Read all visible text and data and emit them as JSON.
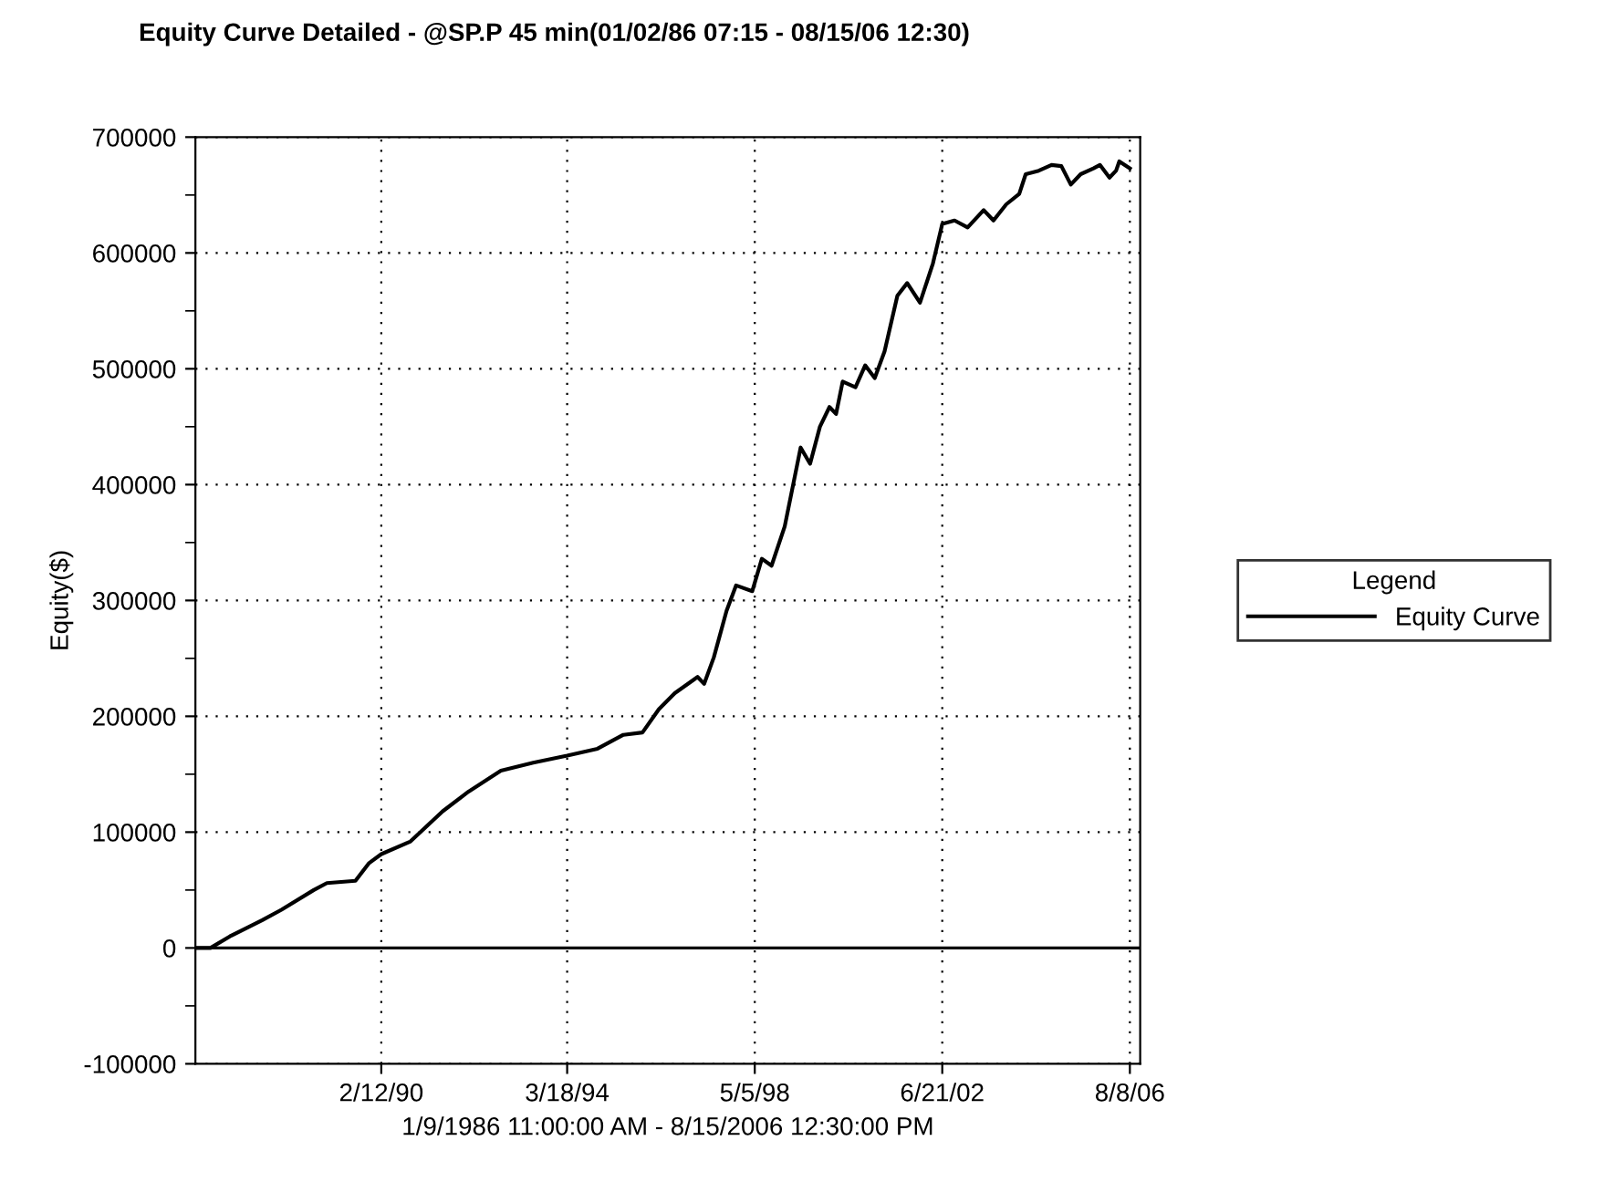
{
  "chart_data": {
    "type": "line",
    "title": "Equity Curve Detailed - @SP.P 45 min(01/02/86 07:15 - 08/15/06 12:30)",
    "xlabel": "1/9/1986 11:00:00 AM - 8/15/2006 12:30:00 PM",
    "ylabel": "Equity($)",
    "legend_title": "Legend",
    "legend": "right",
    "x": [
      "1986-01-09",
      "1986-05-10",
      "1986-10-13",
      "1987-07-01",
      "1987-12-02",
      "1988-08-18",
      "1988-12-01",
      "1989-07-19",
      "1989-11-03",
      "1990-02-12",
      "1990-10-05",
      "1991-06-21",
      "1992-01-15",
      "1992-10-01",
      "1993-06-18",
      "1994-03-18",
      "1994-11-17",
      "1995-06-13",
      "1995-11-14",
      "1996-03-24",
      "1996-07-31",
      "1997-01-30",
      "1997-03-24",
      "1997-06-10",
      "1997-09-20",
      "1997-12-06",
      "1998-04-15",
      "1998-07-01",
      "1998-09-17",
      "1999-01-01",
      "1999-05-09",
      "1999-07-24",
      "1999-10-11",
      "1999-12-27",
      "2000-02-18",
      "2000-04-11",
      "2000-07-23",
      "2000-10-09",
      "2000-12-25",
      "2001-03-14",
      "2001-06-25",
      "2001-09-12",
      "2001-12-24",
      "2002-04-07",
      "2002-06-21",
      "2002-09-28",
      "2003-01-11",
      "2003-05-20",
      "2003-08-07",
      "2003-11-18",
      "2004-03-01",
      "2004-04-22",
      "2004-08-05",
      "2004-11-16",
      "2005-02-03",
      "2005-04-20",
      "2005-07-08",
      "2005-10-19",
      "2005-12-10",
      "2006-02-25",
      "2006-04-19",
      "2006-05-15",
      "2006-08-08"
    ],
    "series": [
      {
        "name": "Equity Curve",
        "color": "#000000",
        "values": [
          0,
          0,
          10000,
          24000,
          33000,
          50000,
          56000,
          58000,
          73000,
          81000,
          92000,
          118000,
          135000,
          153000,
          160000,
          166000,
          172000,
          184000,
          186000,
          206000,
          220000,
          234000,
          228000,
          251000,
          291000,
          313000,
          308000,
          336000,
          330000,
          364000,
          432000,
          418000,
          450000,
          467000,
          461000,
          489000,
          484000,
          503000,
          492000,
          515000,
          563000,
          574000,
          557000,
          591000,
          625000,
          628000,
          622000,
          637000,
          628000,
          642000,
          651000,
          668000,
          671000,
          676000,
          675000,
          659000,
          668000,
          673000,
          676000,
          665000,
          671000,
          679000,
          673000
        ]
      }
    ],
    "xlim": [
      "1986-01-09",
      "2006-10-30"
    ],
    "xticks": [
      {
        "value": "1990-02-12",
        "label": "2/12/90"
      },
      {
        "value": "1994-03-18",
        "label": "3/18/94"
      },
      {
        "value": "1998-05-05",
        "label": "5/5/98"
      },
      {
        "value": "2002-06-21",
        "label": "6/21/02"
      },
      {
        "value": "2006-08-08",
        "label": "8/8/06"
      }
    ],
    "ylim": [
      -100000,
      700000
    ],
    "yticks": [
      -100000,
      {
        "value": -50000,
        "label": null
      },
      0,
      {
        "value": 50000,
        "label": null
      },
      100000,
      {
        "value": 150000,
        "label": null
      },
      200000,
      {
        "value": 250000,
        "label": null
      },
      300000,
      {
        "value": 350000,
        "label": null
      },
      400000,
      {
        "value": 450000,
        "label": null
      },
      500000,
      {
        "value": 550000,
        "label": null
      },
      600000,
      {
        "value": 650000,
        "label": null
      },
      700000
    ],
    "ref_lines": [
      {
        "axis": "y",
        "value": 0,
        "color": "#000000"
      }
    ],
    "grid": true,
    "line_style": "solid"
  }
}
